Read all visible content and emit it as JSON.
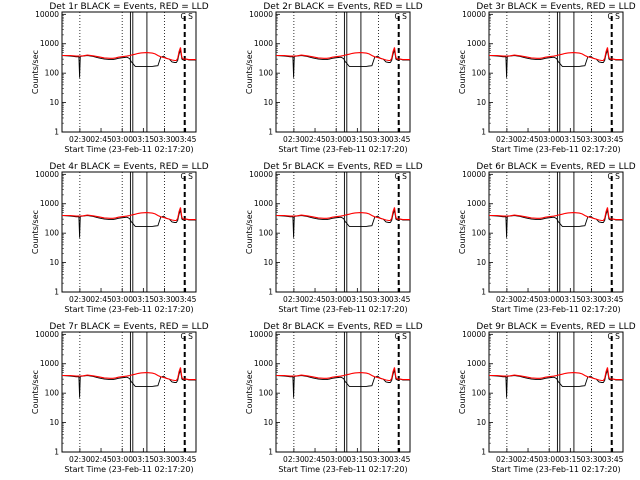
{
  "chart_data": {
    "type": "line",
    "figure_grid": "3x3",
    "x_tick_labels": [
      "02:30",
      "02:45",
      "03:00",
      "03:15",
      "03:30",
      "03:45"
    ],
    "y_tick_labels": [
      "1",
      "10",
      "100",
      "1000",
      "10000"
    ],
    "ylim": [
      1,
      12000
    ],
    "yscale": "log",
    "xlim_minutes_after_start": [
      0,
      95
    ],
    "ylabel": "Counts/sec",
    "xlabel": "Start Time (23-Feb-11 02:17:20)",
    "series_colors": {
      "events": "#000000",
      "lld": "#ff0000"
    },
    "annotation": "C S",
    "panels": [
      {
        "title": "Det 1r BLACK = Events, RED = LLD"
      },
      {
        "title": "Det 2r BLACK = Events, RED = LLD"
      },
      {
        "title": "Det 3r BLACK = Events, RED = LLD"
      },
      {
        "title": "Det 4r BLACK = Events, RED = LLD"
      },
      {
        "title": "Det 5r BLACK = Events, RED = LLD"
      },
      {
        "title": "Det 6r BLACK = Events, RED = LLD"
      },
      {
        "title": "Det 7r BLACK = Events, RED = LLD"
      },
      {
        "title": "Det 8r BLACK = Events, RED = LLD"
      },
      {
        "title": "Det 9r BLACK = Events, RED = LLD"
      }
    ],
    "series": [
      {
        "x": [
          0,
          3,
          6,
          8,
          10,
          12,
          12.5,
          13,
          15,
          18,
          22,
          26,
          30,
          34,
          36,
          38,
          40,
          42,
          44,
          46,
          47,
          48,
          49,
          50,
          52,
          54,
          56,
          60,
          64,
          66,
          68,
          70,
          72,
          74,
          76,
          78,
          80,
          81,
          82,
          83,
          84,
          85,
          86,
          88,
          90,
          92,
          95
        ],
        "events": [
          400,
          390,
          380,
          370,
          360,
          360,
          70,
          370,
          380,
          400,
          370,
          330,
          300,
          290,
          290,
          300,
          320,
          330,
          340,
          350,
          330,
          310,
          250,
          220,
          170,
          170,
          170,
          170,
          170,
          175,
          180,
          350,
          380,
          320,
          300,
          240,
          230,
          230,
          270,
          450,
          600,
          300,
          280,
          300,
          280,
          280,
          280
        ],
        "lld": [
          400,
          400,
          400,
          390,
          380,
          380,
          380,
          380,
          390,
          410,
          390,
          360,
          330,
          320,
          320,
          330,
          350,
          360,
          370,
          380,
          390,
          400,
          410,
          420,
          440,
          470,
          490,
          500,
          480,
          450,
          400,
          360,
          340,
          320,
          300,
          280,
          270,
          270,
          320,
          550,
          750,
          340,
          300,
          300,
          290,
          290,
          290
        ]
      }
    ]
  }
}
